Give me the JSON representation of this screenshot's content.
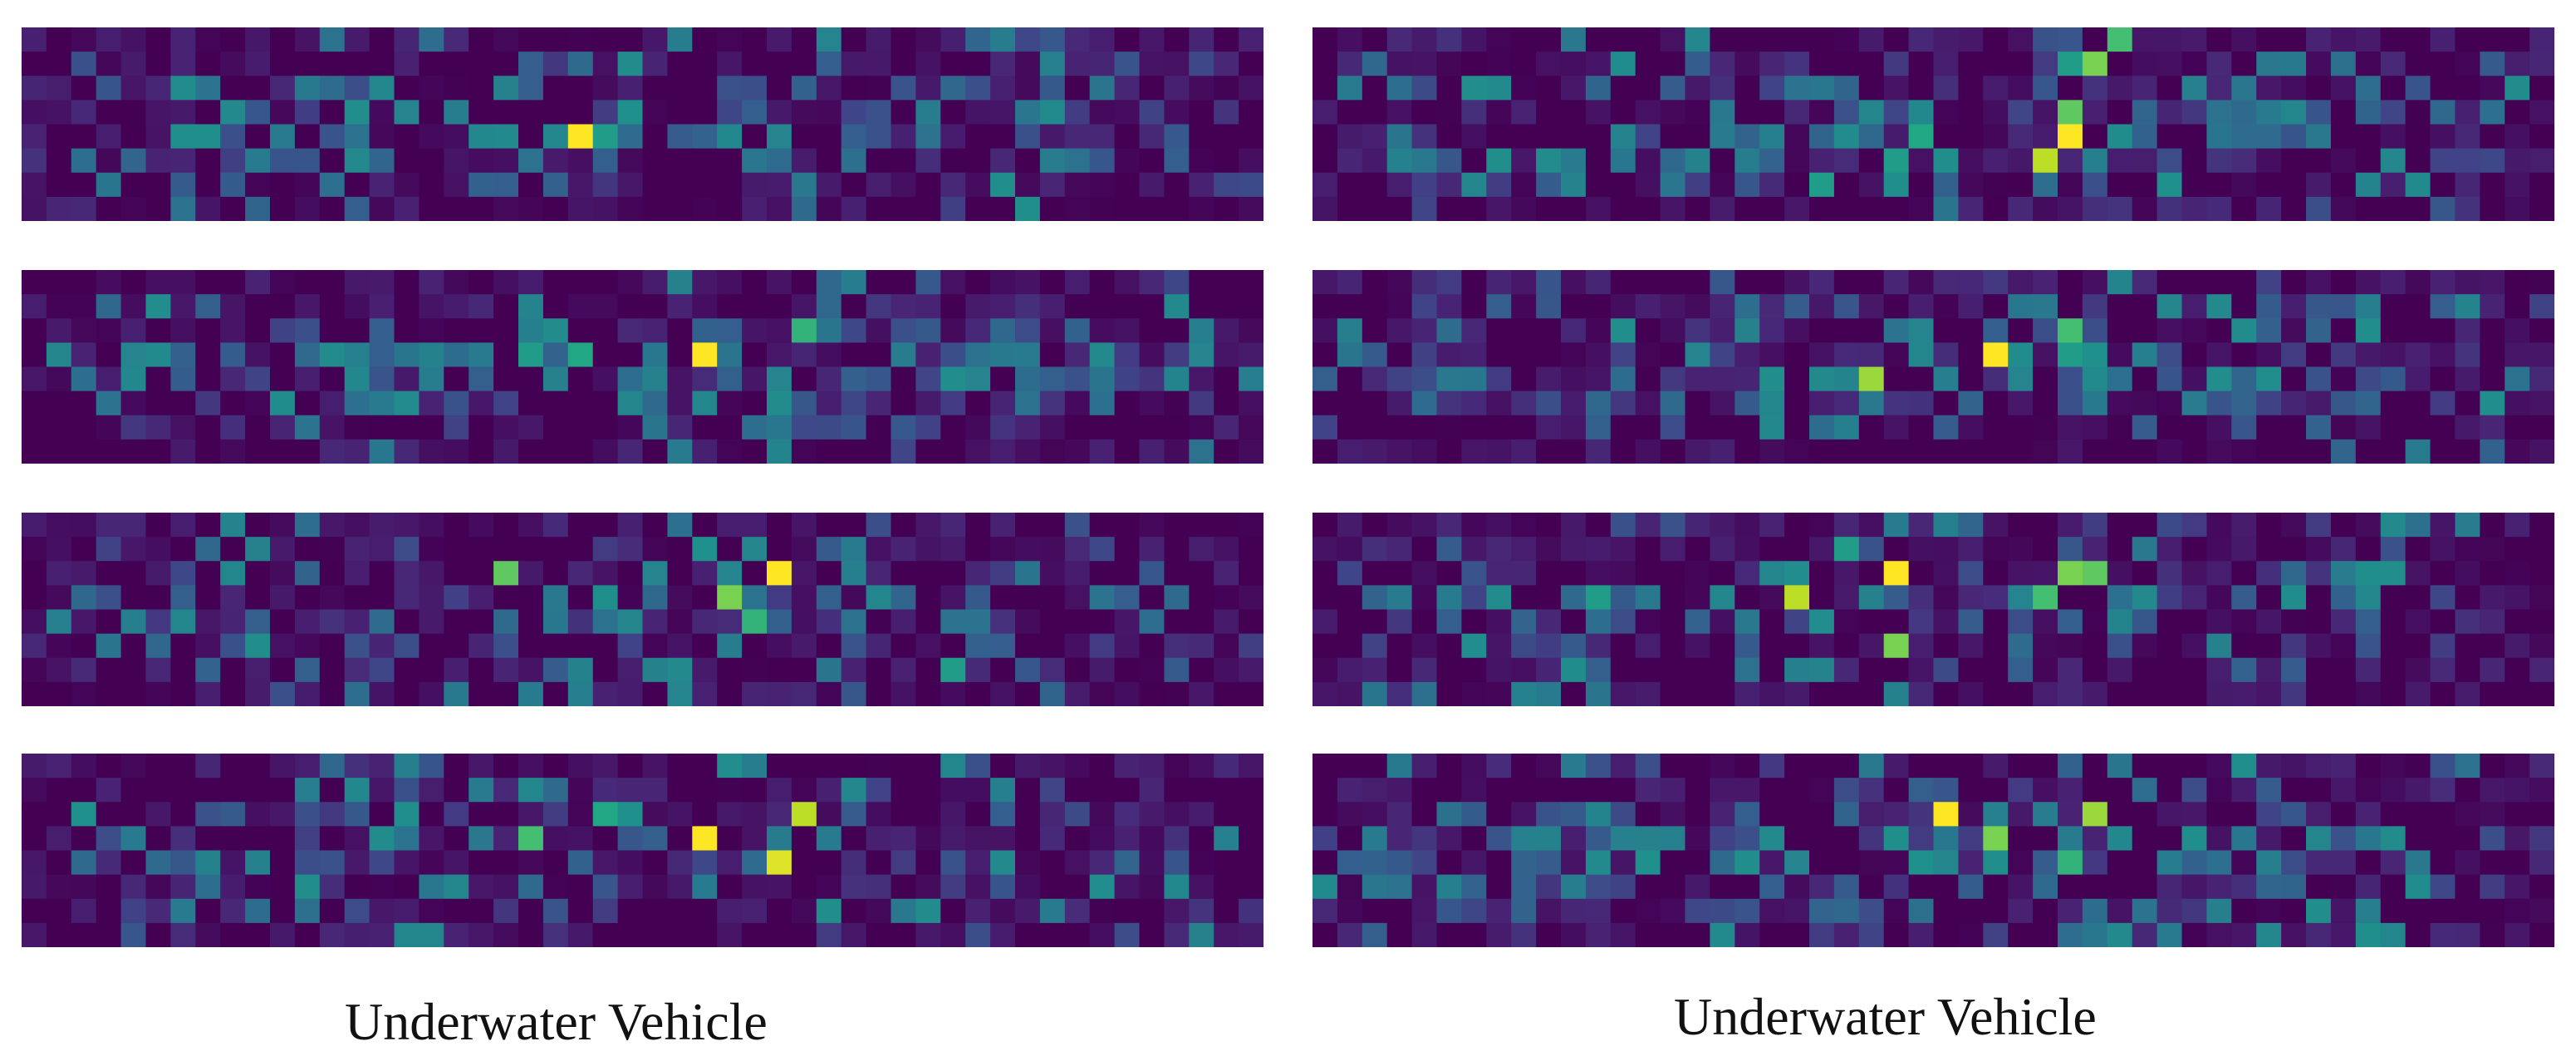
{
  "captions": {
    "left": "Underwater Vehicle",
    "right": "Underwater Vehicle"
  },
  "colormap": {
    "name": "viridis",
    "background": "#450c54"
  },
  "chart_data": [
    {
      "type": "heatmap",
      "id": "left-1",
      "rows": 8,
      "cols": 50,
      "hotspots": [
        [
          4,
          22,
          1.0
        ],
        [
          4,
          23,
          0.55
        ],
        [
          3,
          24,
          0.5
        ],
        [
          4,
          24,
          0.35
        ],
        [
          0,
          32,
          0.45
        ],
        [
          1,
          32,
          0.3
        ],
        [
          4,
          30,
          0.45
        ],
        [
          5,
          30,
          0.35
        ],
        [
          3,
          29,
          0.3
        ],
        [
          5,
          23,
          0.3
        ]
      ],
      "density": 0.4
    },
    {
      "type": "heatmap",
      "id": "left-2",
      "rows": 8,
      "cols": 50,
      "hotspots": [
        [
          3,
          27,
          1.0
        ],
        [
          2,
          31,
          0.65
        ],
        [
          3,
          22,
          0.6
        ],
        [
          3,
          20,
          0.55
        ],
        [
          4,
          30,
          0.45
        ],
        [
          5,
          30,
          0.4
        ],
        [
          5,
          27,
          0.35
        ],
        [
          2,
          28,
          0.3
        ],
        [
          0,
          32,
          0.3
        ]
      ],
      "density": 0.45
    },
    {
      "type": "heatmap",
      "id": "left-3",
      "rows": 8,
      "cols": 50,
      "hotspots": [
        [
          2,
          30,
          1.0
        ],
        [
          2,
          19,
          0.75
        ],
        [
          3,
          28,
          0.8
        ],
        [
          1,
          27,
          0.5
        ],
        [
          2,
          28,
          0.45
        ],
        [
          4,
          29,
          0.65
        ],
        [
          6,
          37,
          0.55
        ],
        [
          2,
          25,
          0.45
        ],
        [
          3,
          21,
          0.4
        ]
      ],
      "density": 0.38
    },
    {
      "type": "heatmap",
      "id": "left-4",
      "rows": 8,
      "cols": 50,
      "hotspots": [
        [
          3,
          27,
          1.0
        ],
        [
          2,
          31,
          0.9
        ],
        [
          4,
          30,
          0.95
        ],
        [
          3,
          20,
          0.7
        ],
        [
          2,
          23,
          0.6
        ],
        [
          2,
          24,
          0.5
        ],
        [
          4,
          29,
          0.35
        ]
      ],
      "density": 0.42
    },
    {
      "type": "heatmap",
      "id": "right-1",
      "rows": 8,
      "cols": 50,
      "hotspots": [
        [
          4,
          30,
          1.0
        ],
        [
          5,
          29,
          0.9
        ],
        [
          3,
          30,
          0.75
        ],
        [
          1,
          31,
          0.8
        ],
        [
          1,
          30,
          0.55
        ],
        [
          0,
          32,
          0.7
        ],
        [
          4,
          24,
          0.6
        ],
        [
          5,
          23,
          0.55
        ],
        [
          6,
          20,
          0.55
        ],
        [
          6,
          34,
          0.5
        ],
        [
          5,
          43,
          0.45
        ]
      ],
      "density": 0.48
    },
    {
      "type": "heatmap",
      "id": "right-2",
      "rows": 8,
      "cols": 50,
      "hotspots": [
        [
          3,
          27,
          1.0
        ],
        [
          4,
          22,
          0.85
        ],
        [
          2,
          30,
          0.7
        ],
        [
          3,
          30,
          0.55
        ],
        [
          5,
          22,
          0.4
        ],
        [
          1,
          29,
          0.4
        ],
        [
          4,
          28,
          0.45
        ]
      ],
      "density": 0.44
    },
    {
      "type": "heatmap",
      "id": "right-3",
      "rows": 8,
      "cols": 50,
      "hotspots": [
        [
          2,
          23,
          1.0
        ],
        [
          3,
          19,
          0.9
        ],
        [
          2,
          30,
          0.8
        ],
        [
          2,
          31,
          0.75
        ],
        [
          3,
          29,
          0.7
        ],
        [
          5,
          23,
          0.8
        ],
        [
          1,
          21,
          0.55
        ],
        [
          3,
          11,
          0.55
        ],
        [
          3,
          28,
          0.45
        ]
      ],
      "density": 0.42
    },
    {
      "type": "heatmap",
      "id": "right-4",
      "rows": 8,
      "cols": 50,
      "hotspots": [
        [
          2,
          25,
          1.0
        ],
        [
          2,
          31,
          0.85
        ],
        [
          3,
          27,
          0.8
        ],
        [
          4,
          30,
          0.65
        ],
        [
          4,
          13,
          0.5
        ],
        [
          4,
          19,
          0.45
        ],
        [
          3,
          35,
          0.45
        ],
        [
          4,
          44,
          0.4
        ]
      ],
      "density": 0.46
    }
  ]
}
